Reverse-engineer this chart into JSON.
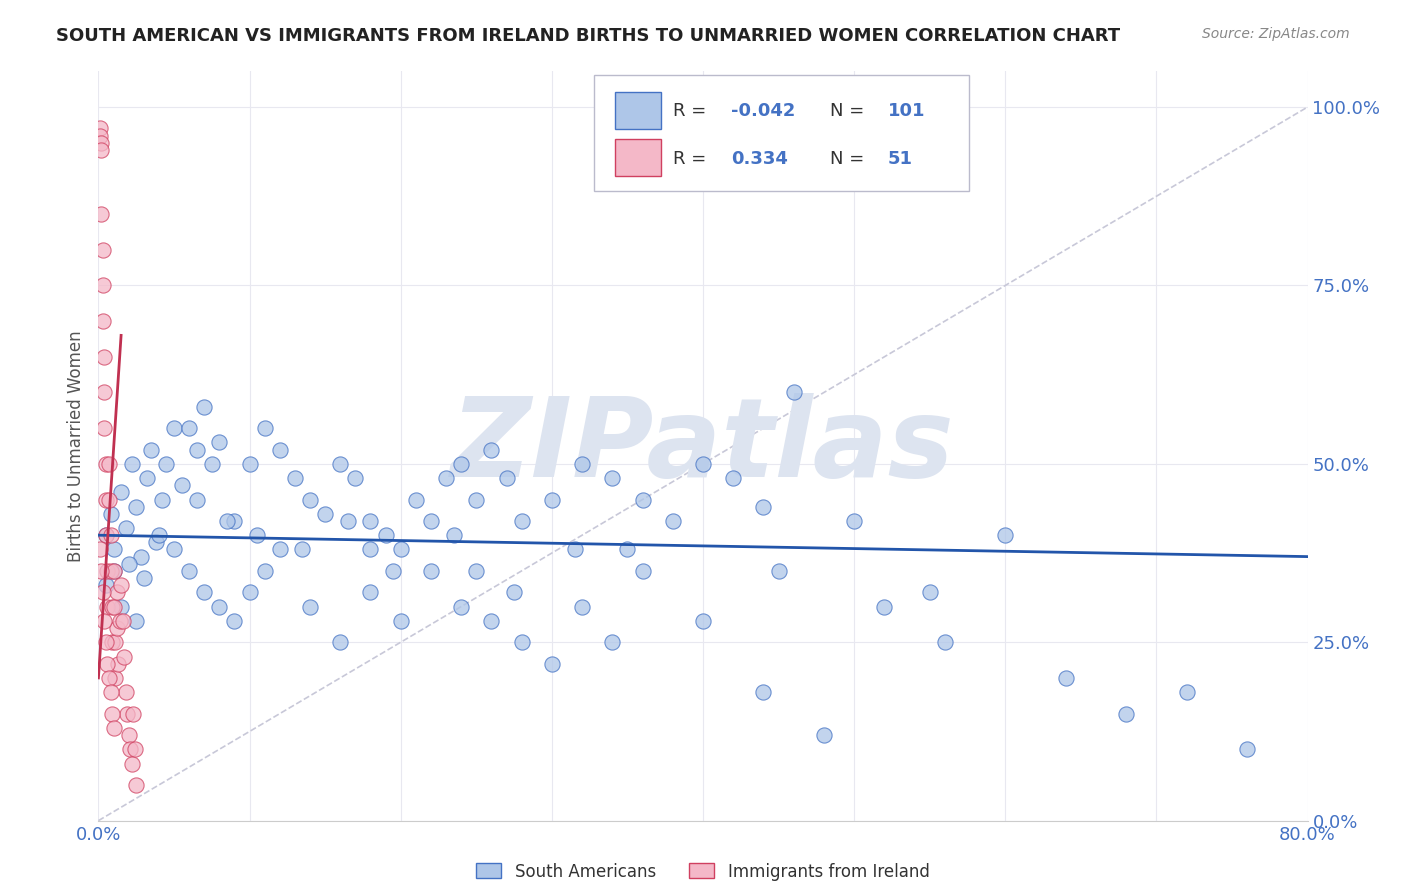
{
  "title": "SOUTH AMERICAN VS IMMIGRANTS FROM IRELAND BIRTHS TO UNMARRIED WOMEN CORRELATION CHART",
  "source": "Source: ZipAtlas.com",
  "ylabel": "Births to Unmarried Women",
  "yticks": [
    "0.0%",
    "25.0%",
    "50.0%",
    "75.0%",
    "100.0%"
  ],
  "ytick_vals": [
    0.0,
    0.25,
    0.5,
    0.75,
    1.0
  ],
  "legend_blue_r": "-0.042",
  "legend_blue_n": "101",
  "legend_pink_r": "0.334",
  "legend_pink_n": "51",
  "legend_label_blue": "South Americans",
  "legend_label_pink": "Immigrants from Ireland",
  "blue_fill": "#aec6e8",
  "blue_edge": "#4472c4",
  "pink_fill": "#f4b8c8",
  "pink_edge": "#d04060",
  "blue_line_color": "#2255aa",
  "pink_line_color": "#c03050",
  "ref_line_color": "#c8c8d8",
  "watermark": "ZIPatlas",
  "watermark_color": "#dde4f0",
  "background_color": "#ffffff",
  "grid_color": "#e8e8f0",
  "title_color": "#222222",
  "label_color": "#555555",
  "tick_color": "#4472c4",
  "xlim": [
    0.0,
    0.8
  ],
  "ylim": [
    0.0,
    1.05
  ],
  "blue_x": [
    0.005,
    0.008,
    0.01,
    0.015,
    0.018,
    0.022,
    0.025,
    0.028,
    0.032,
    0.035,
    0.038,
    0.042,
    0.045,
    0.05,
    0.055,
    0.06,
    0.065,
    0.07,
    0.075,
    0.08,
    0.09,
    0.1,
    0.11,
    0.12,
    0.13,
    0.14,
    0.15,
    0.16,
    0.17,
    0.18,
    0.19,
    0.2,
    0.21,
    0.22,
    0.23,
    0.24,
    0.25,
    0.26,
    0.27,
    0.28,
    0.3,
    0.32,
    0.34,
    0.36,
    0.38,
    0.4,
    0.42,
    0.44,
    0.46,
    0.5,
    0.005,
    0.01,
    0.015,
    0.02,
    0.025,
    0.03,
    0.04,
    0.05,
    0.06,
    0.07,
    0.08,
    0.09,
    0.1,
    0.11,
    0.12,
    0.14,
    0.16,
    0.18,
    0.2,
    0.22,
    0.24,
    0.26,
    0.28,
    0.3,
    0.32,
    0.34,
    0.36,
    0.4,
    0.44,
    0.48,
    0.52,
    0.56,
    0.6,
    0.64,
    0.68,
    0.72,
    0.76,
    0.18,
    0.25,
    0.35,
    0.45,
    0.55,
    0.065,
    0.085,
    0.105,
    0.135,
    0.165,
    0.195,
    0.235,
    0.275,
    0.315
  ],
  "blue_y": [
    0.4,
    0.43,
    0.38,
    0.46,
    0.41,
    0.5,
    0.44,
    0.37,
    0.48,
    0.52,
    0.39,
    0.45,
    0.5,
    0.55,
    0.47,
    0.55,
    0.52,
    0.58,
    0.5,
    0.53,
    0.42,
    0.5,
    0.55,
    0.52,
    0.48,
    0.45,
    0.43,
    0.5,
    0.48,
    0.42,
    0.4,
    0.38,
    0.45,
    0.42,
    0.48,
    0.5,
    0.45,
    0.52,
    0.48,
    0.42,
    0.45,
    0.5,
    0.48,
    0.45,
    0.42,
    0.5,
    0.48,
    0.44,
    0.6,
    0.42,
    0.33,
    0.35,
    0.3,
    0.36,
    0.28,
    0.34,
    0.4,
    0.38,
    0.35,
    0.32,
    0.3,
    0.28,
    0.32,
    0.35,
    0.38,
    0.3,
    0.25,
    0.32,
    0.28,
    0.35,
    0.3,
    0.28,
    0.25,
    0.22,
    0.3,
    0.25,
    0.35,
    0.28,
    0.18,
    0.12,
    0.3,
    0.25,
    0.4,
    0.2,
    0.15,
    0.18,
    0.1,
    0.38,
    0.35,
    0.38,
    0.35,
    0.32,
    0.45,
    0.42,
    0.4,
    0.38,
    0.42,
    0.35,
    0.4,
    0.32,
    0.38
  ],
  "pink_x": [
    0.001,
    0.001,
    0.002,
    0.002,
    0.002,
    0.003,
    0.003,
    0.003,
    0.004,
    0.004,
    0.004,
    0.005,
    0.005,
    0.005,
    0.006,
    0.006,
    0.007,
    0.007,
    0.008,
    0.008,
    0.009,
    0.009,
    0.01,
    0.01,
    0.011,
    0.011,
    0.012,
    0.012,
    0.013,
    0.014,
    0.015,
    0.016,
    0.017,
    0.018,
    0.019,
    0.02,
    0.021,
    0.022,
    0.023,
    0.024,
    0.001,
    0.002,
    0.003,
    0.004,
    0.005,
    0.006,
    0.007,
    0.008,
    0.009,
    0.01,
    0.025
  ],
  "pink_y": [
    0.97,
    0.96,
    0.95,
    0.94,
    0.85,
    0.8,
    0.75,
    0.7,
    0.65,
    0.6,
    0.55,
    0.5,
    0.45,
    0.4,
    0.35,
    0.3,
    0.5,
    0.45,
    0.4,
    0.35,
    0.3,
    0.25,
    0.35,
    0.3,
    0.25,
    0.2,
    0.32,
    0.27,
    0.22,
    0.28,
    0.33,
    0.28,
    0.23,
    0.18,
    0.15,
    0.12,
    0.1,
    0.08,
    0.15,
    0.1,
    0.38,
    0.35,
    0.32,
    0.28,
    0.25,
    0.22,
    0.2,
    0.18,
    0.15,
    0.13,
    0.05
  ]
}
